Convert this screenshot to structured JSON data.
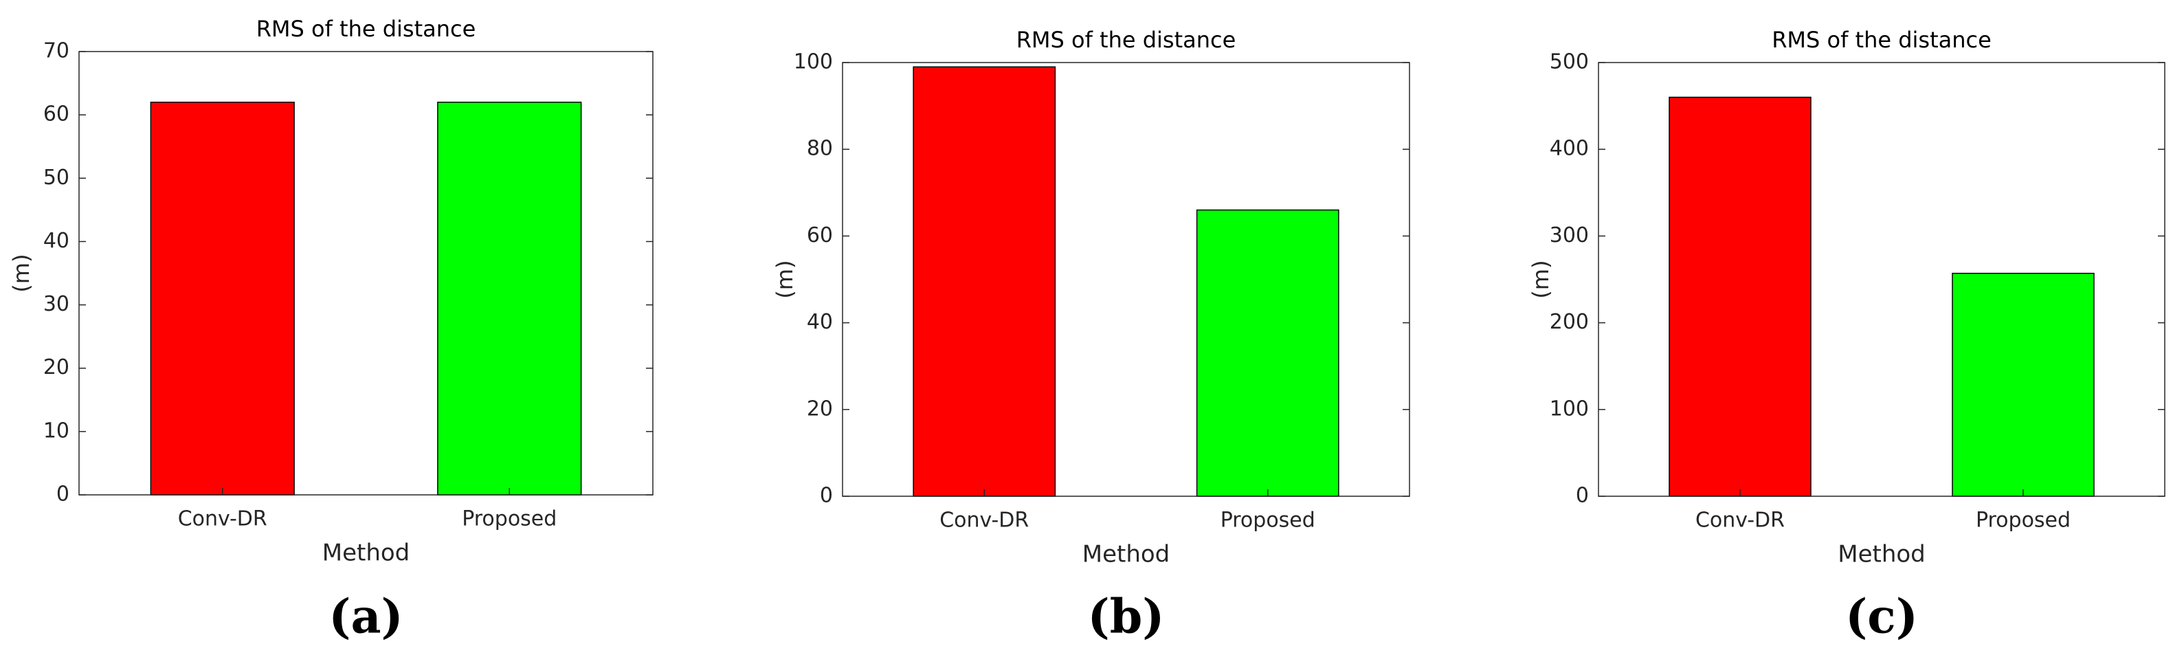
{
  "chart_data": [
    {
      "type": "bar",
      "title": "RMS of the distance",
      "panel_label": "(a)",
      "x_label": "Method",
      "y_label": "(m)",
      "categories": [
        "Conv-DR",
        "Proposed"
      ],
      "values": [
        62,
        62
      ],
      "colors": [
        "#ff0000",
        "#00ff00"
      ],
      "ylim": [
        0,
        70
      ],
      "yticks": [
        0,
        10,
        20,
        30,
        40,
        50,
        60,
        70
      ]
    },
    {
      "type": "bar",
      "title": "RMS of the distance",
      "panel_label": "(b)",
      "x_label": "Method",
      "y_label": "(m)",
      "categories": [
        "Conv-DR",
        "Proposed"
      ],
      "values": [
        99,
        66
      ],
      "colors": [
        "#ff0000",
        "#00ff00"
      ],
      "ylim": [
        0,
        100
      ],
      "yticks": [
        0,
        20,
        40,
        60,
        80,
        100
      ]
    },
    {
      "type": "bar",
      "title": "RMS of the distance",
      "panel_label": "(c)",
      "x_label": "Method",
      "y_label": "(m)",
      "categories": [
        "Conv-DR",
        "Proposed"
      ],
      "values": [
        460,
        257
      ],
      "colors": [
        "#ff0000",
        "#00ff00"
      ],
      "ylim": [
        0,
        500
      ],
      "yticks": [
        0,
        100,
        200,
        300,
        400,
        500
      ]
    }
  ]
}
